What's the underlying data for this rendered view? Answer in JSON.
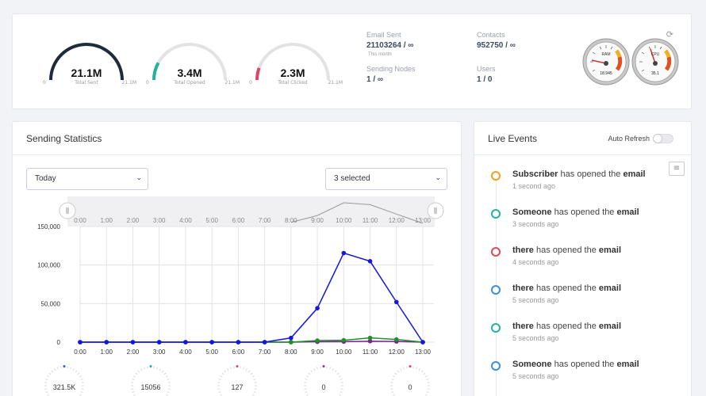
{
  "summary": {
    "gauges": [
      {
        "value": "21.1M",
        "label": "Total Sent",
        "min": "0",
        "max": "21.1M",
        "fraction": 1.0,
        "color": "#1e2b3a"
      },
      {
        "value": "3.4M",
        "label": "Total Opened",
        "min": "0",
        "max": "21.1M",
        "fraction": 0.16,
        "color": "#22b39a"
      },
      {
        "value": "2.3M",
        "label": "Total Clicked",
        "min": "0",
        "max": "21.1M",
        "fraction": 0.11,
        "color": "#d94868"
      }
    ],
    "email_sent": {
      "label": "Email Sent",
      "value": "21103264 / ∞",
      "sub": "This month"
    },
    "contacts": {
      "label": "Contacts",
      "value": "952750 / ∞"
    },
    "sending_nodes": {
      "label": "Sending Nodes",
      "value": "1 / ∞"
    },
    "users": {
      "label": "Users",
      "value": "1 / 0"
    },
    "ram": {
      "label": "RAM",
      "value": "18.945"
    },
    "cpu": {
      "label": "CPU",
      "value": "35.1"
    }
  },
  "stats": {
    "title": "Sending Statistics",
    "period_select": "Today",
    "series_select": "3 selected",
    "mini_values": [
      "321.5K",
      "15056",
      "127",
      "0",
      "0"
    ],
    "mini_colors": [
      "#3b5bdb",
      "#22b39a",
      "#d94868",
      "#7b3fa0",
      "#d94868"
    ]
  },
  "chart_data": {
    "type": "line",
    "x": [
      "0:00",
      "1:00",
      "2:00",
      "3:00",
      "4:00",
      "5:00",
      "6:00",
      "7:00",
      "8:00",
      "9:00",
      "10:00",
      "11:00",
      "12:00",
      "13:00"
    ],
    "ylim": [
      0,
      150000
    ],
    "yticks": [
      "0",
      "50,000",
      "100,000",
      "150,000"
    ],
    "ytick_values": [
      0,
      50000,
      100000,
      150000
    ],
    "grid": true,
    "series": [
      {
        "color": "#1515e0",
        "values": [
          0,
          0,
          0,
          0,
          0,
          0,
          0,
          0,
          5500,
          44000,
          115500,
          105000,
          52000,
          0
        ]
      },
      {
        "color": "#1f8f2a",
        "values": [
          0,
          0,
          0,
          0,
          0,
          0,
          0,
          0,
          0,
          2000,
          2500,
          5500,
          3500,
          0
        ]
      },
      {
        "color": "#7b1f8f",
        "values": [
          0,
          0,
          0,
          0,
          0,
          0,
          0,
          0,
          0,
          500,
          700,
          1200,
          900,
          0
        ]
      }
    ],
    "navigator_values": [
      0,
      0,
      0,
      0,
      0,
      0,
      0,
      0,
      5500,
      44000,
      115500,
      105000,
      52000,
      0
    ]
  },
  "events": {
    "title": "Live Events",
    "auto_refresh_label": "Auto Refresh",
    "middle": "has opened the",
    "object": "email",
    "items": [
      {
        "name": "Subscriber",
        "time": "1 second ago",
        "color": "#f0a020"
      },
      {
        "name": "Someone",
        "time": "3 seconds ago",
        "color": "#22b39a"
      },
      {
        "name": "there",
        "time": "4 seconds ago",
        "color": "#e04858"
      },
      {
        "name": "there",
        "time": "5 seconds ago",
        "color": "#3b8fe0"
      },
      {
        "name": "there",
        "time": "5 seconds ago",
        "color": "#22b39a"
      },
      {
        "name": "Someone",
        "time": "5 seconds ago",
        "color": "#3b8fe0"
      }
    ]
  }
}
